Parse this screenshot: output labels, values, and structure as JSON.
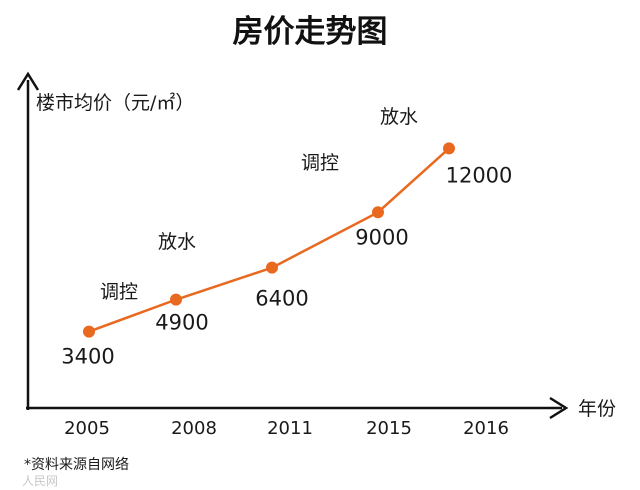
{
  "chart_data": {
    "type": "line",
    "title": "房价走势图",
    "ylabel": "楼市均价（元/㎡）",
    "xlabel": "年份",
    "categories": [
      "2005",
      "2008",
      "2011",
      "2015",
      "2016"
    ],
    "series": [
      {
        "values": [
          3400,
          4900,
          6400,
          9000,
          12000
        ]
      }
    ],
    "data_labels": [
      "3400",
      "4900",
      "6400",
      "9000",
      "12000"
    ],
    "annotations": [
      "调控",
      "放水",
      "调控",
      "放水"
    ],
    "ylim": [
      0,
      13500
    ],
    "grid": false,
    "line_color": "#e8691f",
    "axis_color": "#111111",
    "footnote": "*资料来源自网络",
    "watermark": "人民网"
  }
}
